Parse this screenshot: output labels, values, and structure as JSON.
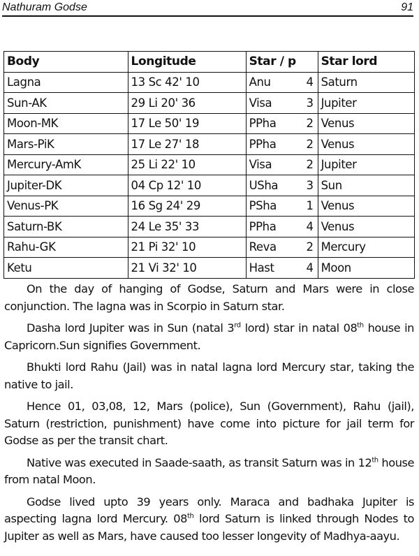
{
  "header": {
    "title": "Nathuram Godse",
    "page_number": "91"
  },
  "table": {
    "headers": [
      "Body",
      "Longitude",
      "Star / p",
      "Star lord"
    ],
    "rows": [
      {
        "body": "Lagna",
        "longitude": "13 Sc 42' 10",
        "star": "Anu",
        "pada": "4",
        "lord": "Saturn"
      },
      {
        "body": "Sun-AK",
        "longitude": "29 Li 20' 36",
        "star": "Visa",
        "pada": "3",
        "lord": "Jupiter"
      },
      {
        "body": "Moon-MK",
        "longitude": "17 Le 50' 19",
        "star": "PPha",
        "pada": "2",
        "lord": "Venus"
      },
      {
        "body": "Mars-PiK",
        "longitude": "17 Le 27' 18",
        "star": "PPha",
        "pada": "2",
        "lord": "Venus"
      },
      {
        "body": "Mercury-AmK",
        "longitude": "25 Li 22' 10",
        "star": "Visa",
        "pada": "2",
        "lord": "Jupiter"
      },
      {
        "body": "Jupiter-DK",
        "longitude": "04 Cp 12' 10",
        "star": "USha",
        "pada": "3",
        "lord": "Sun"
      },
      {
        "body": "Venus-PK",
        "longitude": "16 Sg 24' 29",
        "star": "PSha",
        "pada": "1",
        "lord": "Venus"
      },
      {
        "body": "Saturn-BK",
        "longitude": "24 Le 35' 33",
        "star": "PPha",
        "pada": "4",
        "lord": "Venus"
      },
      {
        "body": "Rahu-GK",
        "longitude": "21 Pi 32' 10",
        "star": "Reva",
        "pada": "2",
        "lord": "Mercury"
      },
      {
        "body": "Ketu",
        "longitude": "21 Vi 32' 10",
        "star": "Hast",
        "pada": "4",
        "lord": "Moon"
      }
    ]
  },
  "paragraphs": {
    "p1": "On the day of hanging of Godse, Saturn and Mars were in close conjunction. The lagna was in Scorpio in Saturn star.",
    "p2a": "Dasha lord Jupiter was in Sun (natal 3",
    "p2sup1": "rd",
    "p2b": " lord) star in natal 08",
    "p2sup2": "th",
    "p2c": " house in Capricorn.Sun signifies Government.",
    "p3": "Bhukti lord Rahu (Jail) was in natal lagna lord Mercury star, taking the native to jail.",
    "p4": "Hence 01, 03,08, 12, Mars (police), Sun (Government), Rahu (jail), Saturn (restriction, punishment) have come into picture for jail term for Godse as per the transit chart.",
    "p5a": "Native was executed in Saade-saath, as transit Saturn was in 12",
    "p5sup": "th",
    "p5b": " house from natal Moon.",
    "p6a": "Godse lived upto 39 years only. Maraca and badhaka Jupiter is aspecting lagna lord Mercury. 08",
    "p6sup": "th",
    "p6b": " lord Saturn is linked through Nodes to Jupiter as well as Mars, have caused too lesser longevity of Madhya-aayu."
  }
}
